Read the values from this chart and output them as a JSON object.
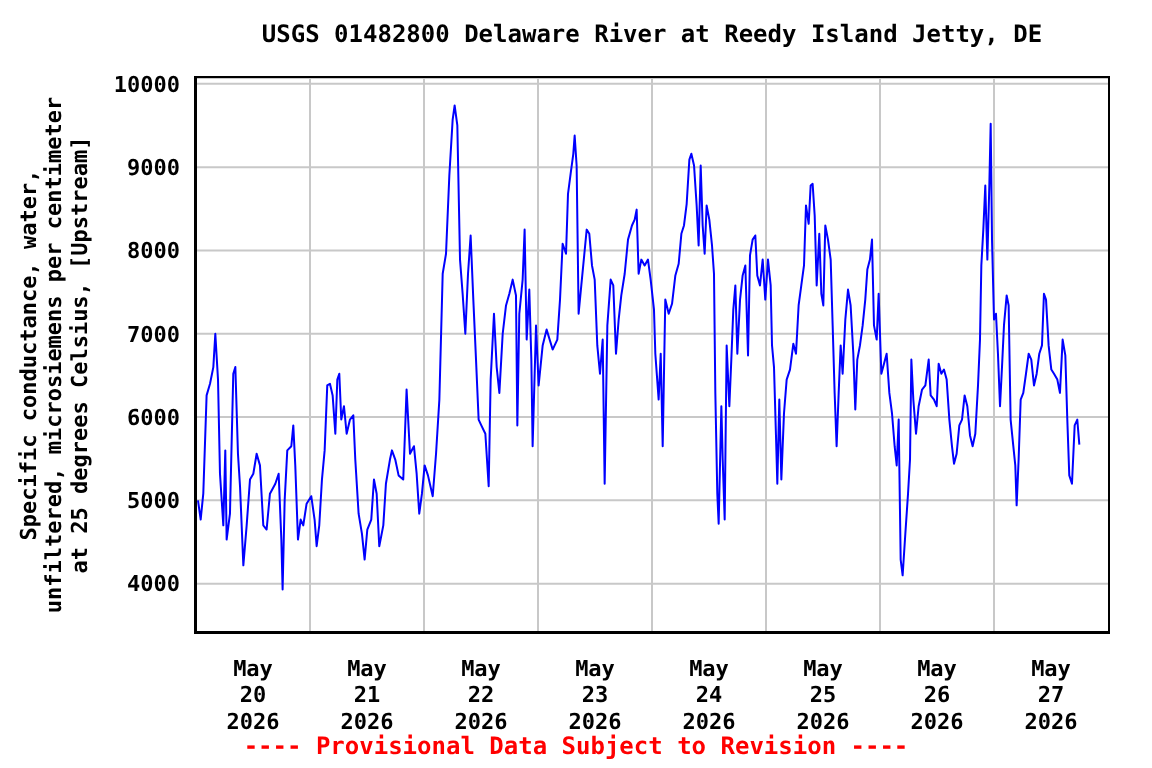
{
  "chart_data": {
    "type": "line",
    "title": "USGS 01482800 Delaware River at Reedy Island Jetty, DE",
    "ylabel": "Specific conductance, water,\nunfiltered, microsiemens per centimeter\nat 25 degrees Celsius, [Upstream]",
    "annotations": [
      "---- Provisional Data Subject to Revision ----"
    ],
    "color": "#0000ff",
    "grid": true,
    "xlim": [
      "2026-05-20T00:00",
      "2026-05-28T00:00"
    ],
    "xticks": [
      {
        "value": "2026-05-20T12:00",
        "label": "May\n20\n2026"
      },
      {
        "value": "2026-05-21T00:00",
        "label": null
      },
      {
        "value": "2026-05-21T12:00",
        "label": "May\n21\n2026"
      },
      {
        "value": "2026-05-22T00:00",
        "label": null
      },
      {
        "value": "2026-05-22T12:00",
        "label": "May\n22\n2026"
      },
      {
        "value": "2026-05-23T00:00",
        "label": null
      },
      {
        "value": "2026-05-23T12:00",
        "label": "May\n23\n2026"
      },
      {
        "value": "2026-05-24T00:00",
        "label": null
      },
      {
        "value": "2026-05-24T12:00",
        "label": "May\n24\n2026"
      },
      {
        "value": "2026-05-25T00:00",
        "label": null
      },
      {
        "value": "2026-05-25T12:00",
        "label": "May\n25\n2026"
      },
      {
        "value": "2026-05-26T00:00",
        "label": null
      },
      {
        "value": "2026-05-26T12:00",
        "label": "May\n26\n2026"
      },
      {
        "value": "2026-05-27T00:00",
        "label": null
      },
      {
        "value": "2026-05-27T12:00",
        "label": "May\n27\n2026"
      }
    ],
    "ylim": [
      3420,
      10070
    ],
    "yticks": [
      4000,
      5000,
      6000,
      7000,
      8000,
      9000,
      10000
    ],
    "x": [
      "2026-05-20T00:25",
      "2026-05-20T00:59",
      "2026-05-20T01:32",
      "2026-05-20T02:14",
      "2026-05-20T02:57",
      "2026-05-20T03:39",
      "2026-05-20T04:04",
      "2026-05-20T04:38",
      "2026-05-20T05:03",
      "2026-05-20T05:45",
      "2026-05-20T06:10",
      "2026-05-20T06:27",
      "2026-05-20T07:09",
      "2026-05-20T07:51",
      "2026-05-20T08:17",
      "2026-05-20T08:50",
      "2026-05-20T09:16",
      "2026-05-20T09:58",
      "2026-05-20T10:40",
      "2026-05-20T11:22",
      "2026-05-20T12:04",
      "2026-05-20T12:46",
      "2026-05-20T13:28",
      "2026-05-20T14:10",
      "2026-05-20T14:52",
      "2026-05-20T15:34",
      "2026-05-20T16:42",
      "2026-05-20T17:24",
      "2026-05-20T17:58",
      "2026-05-20T18:14",
      "2026-05-20T18:40",
      "2026-05-20T19:13",
      "2026-05-20T20:04",
      "2026-05-20T20:29",
      "2026-05-20T20:54",
      "2026-05-20T21:28",
      "2026-05-20T22:02",
      "2026-05-20T22:35",
      "2026-05-20T23:17",
      "2026-05-21T00:16",
      "2026-05-21T00:58",
      "2026-05-21T01:24",
      "2026-05-21T01:57",
      "2026-05-21T02:31",
      "2026-05-21T03:05",
      "2026-05-21T03:38",
      "2026-05-21T04:12",
      "2026-05-21T04:46",
      "2026-05-21T05:20",
      "2026-05-21T05:45",
      "2026-05-21T06:10",
      "2026-05-21T06:35",
      "2026-05-21T07:09",
      "2026-05-21T07:43",
      "2026-05-21T08:25",
      "2026-05-21T09:07",
      "2026-05-21T09:32",
      "2026-05-21T10:14",
      "2026-05-21T10:56",
      "2026-05-21T11:30",
      "2026-05-21T12:04",
      "2026-05-21T12:54",
      "2026-05-21T13:28",
      "2026-05-21T14:02",
      "2026-05-21T14:35",
      "2026-05-21T15:26",
      "2026-05-21T15:59",
      "2026-05-21T16:50",
      "2026-05-21T17:15",
      "2026-05-21T17:57",
      "2026-05-21T18:39",
      "2026-05-21T19:38",
      "2026-05-21T20:20",
      "2026-05-21T21:03",
      "2026-05-21T21:53",
      "2026-05-21T22:27",
      "2026-05-21T23:00",
      "2026-05-21T23:34",
      "2026-05-22T00:08",
      "2026-05-22T00:50",
      "2026-05-22T01:50",
      "2026-05-22T02:32",
      "2026-05-22T03:14",
      "2026-05-22T03:56",
      "2026-05-22T04:38",
      "2026-05-22T05:20",
      "2026-05-22T06:02",
      "2026-05-22T06:27",
      "2026-05-22T07:01",
      "2026-05-22T07:35",
      "2026-05-22T08:08",
      "2026-05-22T08:42",
      "2026-05-22T09:16",
      "2026-05-22T09:49",
      "2026-05-22T10:23",
      "2026-05-22T10:57",
      "2026-05-22T11:30",
      "2026-05-22T12:04",
      "2026-05-22T12:55",
      "2026-05-22T13:37",
      "2026-05-22T14:02",
      "2026-05-22T14:44",
      "2026-05-22T15:18",
      "2026-05-22T15:52",
      "2026-05-22T16:34",
      "2026-05-22T17:16",
      "2026-05-22T17:58",
      "2026-05-22T18:40",
      "2026-05-22T19:22",
      "2026-05-22T19:39",
      "2026-05-22T20:04",
      "2026-05-22T20:46",
      "2026-05-22T21:11",
      "2026-05-22T21:37",
      "2026-05-22T22:10",
      "2026-05-22T22:36",
      "2026-05-22T22:52",
      "2026-05-22T23:35",
      "2026-05-23T00:08",
      "2026-05-23T00:59",
      "2026-05-23T01:49",
      "2026-05-23T03:05",
      "2026-05-23T04:04",
      "2026-05-23T04:38",
      "2026-05-23T05:11",
      "2026-05-23T05:54",
      "2026-05-23T06:19",
      "2026-05-23T06:52",
      "2026-05-23T07:26",
      "2026-05-23T07:43",
      "2026-05-23T08:08",
      "2026-05-23T08:33",
      "2026-05-23T09:07",
      "2026-05-23T10:15",
      "2026-05-23T10:48",
      "2026-05-23T11:22",
      "2026-05-23T11:56",
      "2026-05-23T12:29",
      "2026-05-23T13:03",
      "2026-05-23T13:37",
      "2026-05-23T14:02",
      "2026-05-23T14:36",
      "2026-05-23T15:18",
      "2026-05-23T15:51",
      "2026-05-23T16:25",
      "2026-05-23T16:59",
      "2026-05-23T17:32",
      "2026-05-23T18:15",
      "2026-05-23T18:57",
      "2026-05-23T19:47",
      "2026-05-23T20:21",
      "2026-05-23T20:46",
      "2026-05-23T21:11",
      "2026-05-23T21:45",
      "2026-05-23T22:27",
      "2026-05-23T23:09",
      "2026-05-23T23:43",
      "2026-05-24T00:25",
      "2026-05-24T00:42",
      "2026-05-24T01:24",
      "2026-05-24T01:50",
      "2026-05-24T02:15",
      "2026-05-24T02:48",
      "2026-05-24T03:31",
      "2026-05-24T04:13",
      "2026-05-24T04:55",
      "2026-05-24T05:37",
      "2026-05-24T06:11",
      "2026-05-24T06:44",
      "2026-05-24T07:18",
      "2026-05-24T07:52",
      "2026-05-24T08:17",
      "2026-05-24T08:51",
      "2026-05-24T09:24",
      "2026-05-24T09:49",
      "2026-05-24T10:15",
      "2026-05-24T10:40",
      "2026-05-24T11:05",
      "2026-05-24T11:30",
      "2026-05-24T12:04",
      "2026-05-24T12:38",
      "2026-05-24T13:03",
      "2026-05-24T13:20",
      "2026-05-24T13:45",
      "2026-05-24T14:02",
      "2026-05-24T14:36",
      "2026-05-24T14:53",
      "2026-05-24T15:18",
      "2026-05-24T15:43",
      "2026-05-24T16:17",
      "2026-05-24T16:42",
      "2026-05-24T17:07",
      "2026-05-24T17:33",
      "2026-05-24T17:58",
      "2026-05-24T18:32",
      "2026-05-24T19:05",
      "2026-05-24T19:39",
      "2026-05-24T20:13",
      "2026-05-24T20:38",
      "2026-05-24T21:11",
      "2026-05-24T21:45",
      "2026-05-24T22:10",
      "2026-05-24T22:44",
      "2026-05-24T23:18",
      "2026-05-24T23:51",
      "2026-05-25T00:25",
      "2026-05-25T00:59",
      "2026-05-25T01:16",
      "2026-05-25T01:41",
      "2026-05-25T02:06",
      "2026-05-25T02:23",
      "2026-05-25T02:48",
      "2026-05-25T03:14",
      "2026-05-25T03:47",
      "2026-05-25T04:21",
      "2026-05-25T05:03",
      "2026-05-25T05:45",
      "2026-05-25T06:19",
      "2026-05-25T06:52",
      "2026-05-25T07:26",
      "2026-05-25T08:00",
      "2026-05-25T08:25",
      "2026-05-25T08:59",
      "2026-05-25T09:24",
      "2026-05-25T09:49",
      "2026-05-25T10:15",
      "2026-05-25T10:40",
      "2026-05-25T11:13",
      "2026-05-25T11:39",
      "2026-05-25T12:04",
      "2026-05-25T12:29",
      "2026-05-25T13:03",
      "2026-05-25T13:37",
      "2026-05-25T14:02",
      "2026-05-25T14:27",
      "2026-05-25T14:52",
      "2026-05-25T15:18",
      "2026-05-25T15:43",
      "2026-05-25T16:08",
      "2026-05-25T16:42",
      "2026-05-25T17:16",
      "2026-05-25T17:49",
      "2026-05-25T18:23",
      "2026-05-25T18:48",
      "2026-05-25T19:13",
      "2026-05-25T19:47",
      "2026-05-25T20:21",
      "2026-05-25T20:54",
      "2026-05-25T21:20",
      "2026-05-25T21:53",
      "2026-05-25T22:19",
      "2026-05-25T22:44",
      "2026-05-25T23:18",
      "2026-05-25T23:43",
      "2026-05-26T00:17",
      "2026-05-26T01:24",
      "2026-05-26T01:58",
      "2026-05-26T02:32",
      "2026-05-26T03:05",
      "2026-05-26T03:31",
      "2026-05-26T03:56",
      "2026-05-26T04:21",
      "2026-05-26T04:46",
      "2026-05-26T05:20",
      "2026-05-26T05:54",
      "2026-05-26T06:19",
      "2026-05-26T06:36",
      "2026-05-26T07:01",
      "2026-05-26T07:35",
      "2026-05-26T08:08",
      "2026-05-26T08:51",
      "2026-05-26T09:33",
      "2026-05-26T10:15",
      "2026-05-26T10:40",
      "2026-05-26T11:22",
      "2026-05-26T11:56",
      "2026-05-26T12:21",
      "2026-05-26T12:55",
      "2026-05-26T13:28",
      "2026-05-26T14:02",
      "2026-05-26T14:36",
      "2026-05-26T15:09",
      "2026-05-26T15:35",
      "2026-05-26T16:08",
      "2026-05-26T16:42",
      "2026-05-26T17:16",
      "2026-05-26T17:49",
      "2026-05-26T18:23",
      "2026-05-26T18:57",
      "2026-05-26T19:30",
      "2026-05-26T20:04",
      "2026-05-26T20:38",
      "2026-05-26T21:03",
      "2026-05-26T21:20",
      "2026-05-26T21:45",
      "2026-05-26T22:10",
      "2026-05-26T22:36",
      "2026-05-26T23:01",
      "2026-05-26T23:18",
      "2026-05-26T23:35",
      "2026-05-27T00:00",
      "2026-05-27T00:25",
      "2026-05-27T00:50",
      "2026-05-27T01:16",
      "2026-05-27T01:41",
      "2026-05-27T02:06",
      "2026-05-27T02:40",
      "2026-05-27T03:05",
      "2026-05-27T03:30",
      "2026-05-27T04:04",
      "2026-05-27T04:29",
      "2026-05-27T04:46",
      "2026-05-27T05:11",
      "2026-05-27T05:37",
      "2026-05-27T06:10",
      "2026-05-27T06:44",
      "2026-05-27T07:18",
      "2026-05-27T07:51",
      "2026-05-27T08:25",
      "2026-05-27T08:59",
      "2026-05-27T09:32",
      "2026-05-27T10:06",
      "2026-05-27T10:31",
      "2026-05-27T10:57",
      "2026-05-27T11:30",
      "2026-05-27T12:04",
      "2026-05-27T12:38",
      "2026-05-27T13:20",
      "2026-05-27T13:53",
      "2026-05-27T14:27",
      "2026-05-27T15:01",
      "2026-05-27T15:26",
      "2026-05-27T15:51",
      "2026-05-27T16:25",
      "2026-05-27T16:59",
      "2026-05-27T17:32",
      "2026-05-27T17:58"
    ],
    "values": [
      5000,
      4770,
      5080,
      6260,
      6400,
      6600,
      7000,
      6450,
      5320,
      4700,
      5600,
      4530,
      4840,
      6520,
      6600,
      5560,
      5170,
      4220,
      4700,
      5250,
      5320,
      5560,
      5420,
      4700,
      4650,
      5080,
      5200,
      5320,
      4530,
      3930,
      5000,
      5600,
      5650,
      5900,
      5420,
      4530,
      4770,
      4700,
      4960,
      5050,
      4770,
      4450,
      4700,
      5250,
      5600,
      6380,
      6400,
      6260,
      5800,
      6450,
      6520,
      5970,
      6130,
      5800,
      5970,
      6020,
      5490,
      4840,
      4600,
      4290,
      4650,
      4770,
      5250,
      5080,
      4450,
      4700,
      5200,
      5490,
      5600,
      5490,
      5300,
      5250,
      6330,
      5560,
      5650,
      5320,
      4840,
      5080,
      5420,
      5300,
      5050,
      5560,
      6210,
      7720,
      7960,
      8900,
      9570,
      9740,
      9500,
      7890,
      7480,
      7000,
      7720,
      8180,
      7410,
      6690,
      5970,
      5900,
      5800,
      5170,
      6450,
      7240,
      6600,
      6290,
      7000,
      7340,
      7480,
      7650,
      7460,
      5900,
      7240,
      7650,
      8250,
      6930,
      7530,
      6690,
      5650,
      7100,
      6380,
      6860,
      7050,
      6810,
      6930,
      7410,
      8080,
      7960,
      8680,
      8920,
      9160,
      9380,
      9020,
      7240,
      7580,
      8250,
      8200,
      7820,
      7650,
      6860,
      6520,
      6930,
      5200,
      7100,
      7650,
      7580,
      6760,
      7170,
      7460,
      7720,
      8130,
      8300,
      8370,
      8490,
      7720,
      7890,
      7820,
      7890,
      7650,
      7290,
      6760,
      6210,
      6760,
      5650,
      7410,
      7240,
      7360,
      7700,
      7840,
      8200,
      8300,
      8560,
      9090,
      9160,
      9020,
      8540,
      8060,
      9020,
      8300,
      7960,
      8540,
      8370,
      8060,
      7720,
      6290,
      5080,
      4720,
      6130,
      5490,
      4770,
      6860,
      6130,
      6690,
      7290,
      7580,
      6760,
      7410,
      7700,
      7820,
      6740,
      7940,
      8130,
      8180,
      7700,
      7580,
      7890,
      7410,
      7890,
      7580,
      6860,
      6600,
      5780,
      5200,
      6210,
      5250,
      6040,
      6450,
      6570,
      6880,
      6760,
      7340,
      7580,
      7820,
      8540,
      8320,
      8780,
      8800,
      8420,
      7580,
      8200,
      7480,
      7340,
      8300,
      8130,
      7890,
      7100,
      6290,
      5650,
      6290,
      6860,
      6520,
      7170,
      7530,
      7340,
      6760,
      6090,
      6690,
      6860,
      7100,
      7410,
      7770,
      7890,
      8130,
      7100,
      6930,
      7480,
      6520,
      6760,
      6290,
      6040,
      5650,
      5420,
      5970,
      4290,
      4100,
      4600,
      5080,
      5490,
      6690,
      6210,
      5800,
      6130,
      6330,
      6380,
      6690,
      6260,
      6210,
      6130,
      6640,
      6520,
      6570,
      6450,
      5970,
      5650,
      5440,
      5560,
      5900,
      5970,
      6260,
      6130,
      5780,
      5650,
      5800,
      6380,
      6930,
      7820,
      8250,
      8780,
      7890,
      8780,
      9520,
      8130,
      7170,
      7240,
      6760,
      6130,
      6600,
      7100,
      7460,
      7340,
      5970,
      5650,
      5420,
      4940,
      5490,
      6210,
      6290,
      6520,
      6760,
      6690,
      6380,
      6520,
      6760,
      6860,
      7480,
      7410,
      6860,
      6570,
      6520,
      6450,
      6290,
      6930,
      6740,
      5970,
      5300,
      5200,
      5900,
      5970,
      5670
    ]
  }
}
